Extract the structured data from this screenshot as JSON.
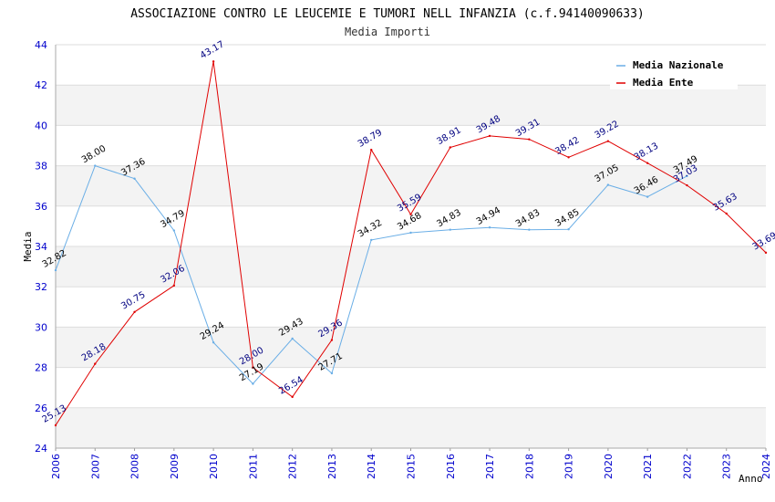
{
  "chart_data": {
    "type": "line",
    "title": "ASSOCIAZIONE CONTRO LE LEUCEMIE E TUMORI NELL INFANZIA (c.f.94140090633)",
    "subtitle": "Media Importi",
    "xlabel": "Anno",
    "ylabel": "Media",
    "ylim": [
      24,
      44
    ],
    "yticks": [
      "24",
      "26",
      "28",
      "30",
      "32",
      "34",
      "36",
      "38",
      "40",
      "42",
      "44"
    ],
    "categories": [
      "2006",
      "2007",
      "2008",
      "2009",
      "2010",
      "2011",
      "2012",
      "2013",
      "2014",
      "2015",
      "2016",
      "2017",
      "2018",
      "2019",
      "2020",
      "2021",
      "2022",
      "2023",
      "2024"
    ],
    "series": [
      {
        "name": "Media Nazionale",
        "color": "#6aaee6",
        "values": [
          32.82,
          38.0,
          37.36,
          34.79,
          29.24,
          27.19,
          29.43,
          27.71,
          34.32,
          34.68,
          34.83,
          34.94,
          34.83,
          34.85,
          37.05,
          36.46,
          37.49,
          null,
          null
        ],
        "labels": [
          "32.82",
          "38.00",
          "37.36",
          "34.79",
          "29.24",
          "27.19",
          "29.43",
          "27.71",
          "34.32",
          "34.68",
          "34.83",
          "34.94",
          "34.83",
          "34.85",
          "37.05",
          "36.46",
          "37.49",
          "",
          ""
        ]
      },
      {
        "name": "Media Ente",
        "color": "#e00000",
        "values": [
          25.13,
          28.18,
          30.75,
          32.06,
          43.17,
          28.0,
          26.54,
          29.36,
          38.79,
          35.59,
          38.91,
          39.48,
          39.31,
          38.42,
          39.22,
          38.13,
          37.03,
          35.63,
          33.69
        ],
        "labels": [
          "25.13",
          "28.18",
          "30.75",
          "32.06",
          "43.17",
          "28.00",
          "26.54",
          "29.36",
          "38.79",
          "35.59",
          "38.91",
          "39.48",
          "39.31",
          "38.42",
          "39.22",
          "38.13",
          "37.03",
          "35.63",
          "33.69"
        ]
      }
    ],
    "grid": true,
    "legend_position": "top-right"
  }
}
